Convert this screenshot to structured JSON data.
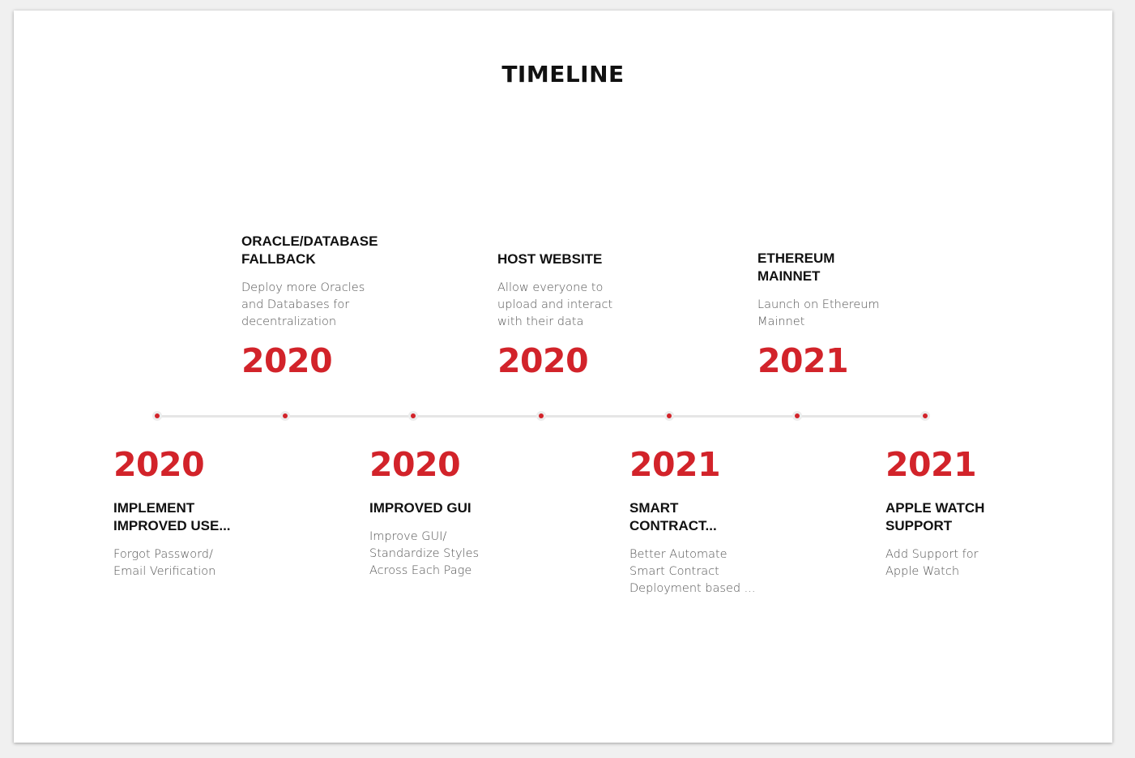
{
  "title": "TIMELINE",
  "accent_color": "#d2232a",
  "events": [
    {
      "year": "2020",
      "heading": "IMPLEMENT\nIMPROVED USE...",
      "desc": "Forgot Password/\nEmail Verification",
      "position": "below"
    },
    {
      "year": "2020",
      "heading": "ORACLE/DATABASE\nFALLBACK",
      "desc": "Deploy more Oracles\nand Databases for\ndecentralization",
      "position": "above"
    },
    {
      "year": "2020",
      "heading": "IMPROVED GUI",
      "desc": "Improve GUI/\nStandardize Styles\nAcross Each Page",
      "position": "below"
    },
    {
      "year": "2020",
      "heading": "HOST WEBSITE",
      "desc": "Allow everyone to\nupload and interact\nwith their data",
      "position": "above"
    },
    {
      "year": "2021",
      "heading": "SMART\nCONTRACT...",
      "desc": "Better Automate\nSmart Contract\nDeployment based ...",
      "position": "below"
    },
    {
      "year": "2021",
      "heading": "ETHEREUM\nMAINNET",
      "desc": "Launch on Ethereum\nMainnet",
      "position": "above"
    },
    {
      "year": "2021",
      "heading": "APPLE WATCH\nSUPPORT",
      "desc": "Add Support for\nApple Watch",
      "position": "below"
    }
  ]
}
